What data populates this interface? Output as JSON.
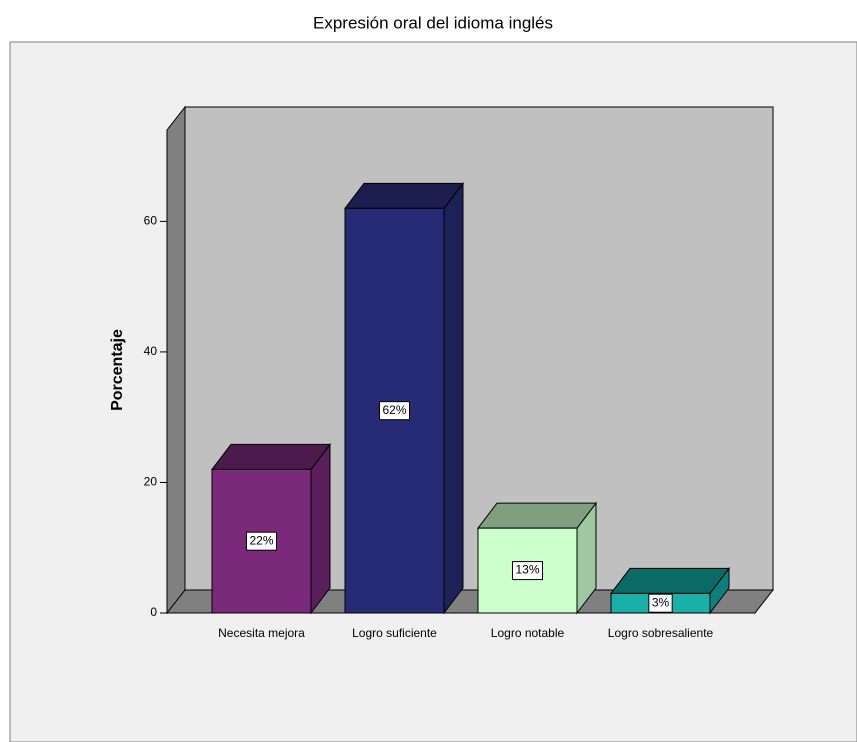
{
  "chart_data": {
    "type": "bar3d",
    "title": "Expresión oral del idioma inglés",
    "y_label": "Porcentaje",
    "categories": [
      "Necesita mejora",
      "Logro suficiente",
      "Logro notable",
      "Logro sobresaliente"
    ],
    "values": [
      22,
      62,
      13,
      3
    ],
    "value_labels": [
      "22%",
      "62%",
      "13%",
      "3%"
    ],
    "colors": [
      "#7b2a7b",
      "#272a74",
      "#ccffcc",
      "#1ab0a8"
    ],
    "top_colors": [
      "#4c1a4c",
      "#1c1e50",
      "#7f9f7f",
      "#0a6a66"
    ],
    "side_colors": [
      "#5a1f5a",
      "#1e2058",
      "#a0c8a0",
      "#0e807c"
    ],
    "ylim": [
      0,
      74
    ],
    "yticks": [
      0,
      20,
      40,
      60
    ]
  }
}
